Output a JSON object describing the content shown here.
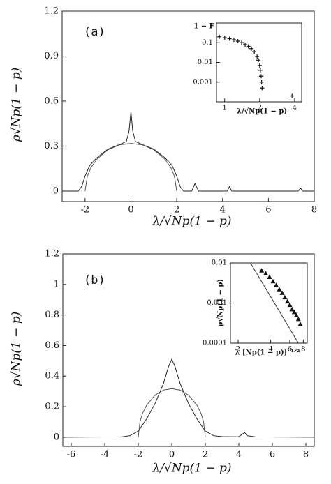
{
  "chart_data": [
    {
      "type": "line",
      "annotation": "(a)",
      "xlabel": "λ/√Np(1 − p)",
      "ylabel": "ρ√Np(1 − p)",
      "xlim": [
        -3,
        8
      ],
      "ylim": [
        -0.07,
        1.2
      ],
      "xticks": [
        -2,
        0,
        2,
        4,
        6,
        8
      ],
      "yticks": [
        0,
        0.3,
        0.6,
        0.9,
        1.2
      ],
      "series": [
        {
          "color": "#222",
          "x": [
            -3,
            -2.3,
            -2.15,
            -2,
            -1.8,
            -1.5,
            -1,
            -0.5,
            -0.2,
            -0.08,
            0,
            0.08,
            0.2,
            0.5,
            1,
            1.5,
            1.8,
            2,
            2.15,
            2.3,
            2.65,
            2.8,
            2.95,
            4.2,
            4.3,
            4.4,
            7.3,
            7.4,
            7.5,
            8
          ],
          "values": [
            0,
            0,
            0.03,
            0.1,
            0.17,
            0.22,
            0.28,
            0.31,
            0.33,
            0.4,
            0.53,
            0.4,
            0.33,
            0.31,
            0.28,
            0.22,
            0.17,
            0.1,
            0.03,
            0,
            0,
            0.05,
            0,
            0,
            0.03,
            0,
            0,
            0.02,
            0,
            0
          ]
        },
        {
          "color": "#555",
          "x": [
            -2,
            -1.9,
            -1.75,
            -1.5,
            -1,
            -0.5,
            0,
            0.5,
            1,
            1.5,
            1.75,
            1.9,
            2
          ],
          "values": [
            0,
            0.099,
            0.154,
            0.21,
            0.275,
            0.308,
            0.318,
            0.308,
            0.275,
            0.21,
            0.154,
            0.099,
            0
          ]
        }
      ]
    },
    {
      "type": "scatter",
      "xlabel": "λ/√Np(1 − p)",
      "ylabel": "1 − F",
      "xscale": "log",
      "yscale": "log",
      "xlim": [
        0.85,
        4.6
      ],
      "ylim": [
        0.0001,
        1
      ],
      "xticks": [
        1,
        2,
        4
      ],
      "yticks": [
        0.1,
        0.01,
        0.001
      ],
      "series": [
        {
          "color": "#111",
          "marker": "+",
          "x": [
            0.9,
            1,
            1.1,
            1.2,
            1.3,
            1.4,
            1.5,
            1.6,
            1.7,
            1.8,
            1.9,
            1.95,
            2,
            2.03,
            2.06,
            2.08,
            2.1,
            3.8
          ],
          "values": [
            0.2,
            0.18,
            0.16,
            0.14,
            0.12,
            0.1,
            0.08,
            0.065,
            0.05,
            0.035,
            0.02,
            0.013,
            0.007,
            0.004,
            0.002,
            0.001,
            0.0005,
            0.0002
          ]
        }
      ]
    },
    {
      "type": "line",
      "annotation": "(b)",
      "xlabel": "λ/√Np(1 − p)",
      "ylabel": "ρ√Np(1 − p)",
      "xlim": [
        -6.5,
        8.5
      ],
      "ylim": [
        -0.06,
        1.2
      ],
      "xticks": [
        -6,
        -4,
        -2,
        0,
        2,
        4,
        6,
        8
      ],
      "yticks": [
        0,
        0.2,
        0.4,
        0.6,
        0.8,
        1,
        1.2
      ],
      "series": [
        {
          "color": "#222",
          "x": [
            -6.5,
            -3,
            -2.5,
            -2,
            -1.5,
            -1,
            -0.5,
            -0.2,
            0,
            0.2,
            0.5,
            1,
            1.5,
            2,
            2.5,
            3,
            4,
            4.2,
            4.35,
            4.5,
            5,
            8.5
          ],
          "values": [
            0,
            0.002,
            0.01,
            0.04,
            0.12,
            0.22,
            0.35,
            0.46,
            0.51,
            0.46,
            0.35,
            0.22,
            0.12,
            0.04,
            0.01,
            0.004,
            0.003,
            0.02,
            0.03,
            0.01,
            0.002,
            0
          ]
        },
        {
          "color": "#555",
          "x": [
            -2,
            -1.9,
            -1.75,
            -1.5,
            -1,
            -0.5,
            0,
            0.5,
            1,
            1.5,
            1.75,
            1.9,
            2
          ],
          "values": [
            0,
            0.099,
            0.154,
            0.21,
            0.275,
            0.308,
            0.318,
            0.308,
            0.275,
            0.21,
            0.154,
            0.099,
            0
          ]
        }
      ]
    },
    {
      "type": "scatter",
      "xlabel": "λ [Np(1 − p)]⁻¹ᐟ²",
      "ylabel": "ρ√Np(1 − p)",
      "xscale": "log",
      "yscale": "log",
      "xlim": [
        1.7,
        8.7
      ],
      "ylim": [
        0.0001,
        0.01
      ],
      "xticks": [
        2,
        4,
        6,
        8
      ],
      "yticks": [
        0.01,
        0.001,
        0.0001
      ],
      "series": [
        {
          "color": "#111",
          "marker": "triangle",
          "x": [
            3.3,
            3.6,
            3.9,
            4.2,
            4.5,
            4.8,
            5.1,
            5.4,
            5.7,
            6,
            6.3,
            6.6,
            6.9,
            7.2,
            7.5
          ],
          "values": [
            0.0065,
            0.0055,
            0.0045,
            0.0035,
            0.0028,
            0.0022,
            0.0018,
            0.0014,
            0.0011,
            0.0009,
            0.0007,
            0.0006,
            0.0005,
            0.0004,
            0.0003
          ]
        },
        {
          "color": "#333",
          "x": [
            2.6,
            7.2
          ],
          "values": [
            0.01,
            0.0001
          ]
        }
      ]
    }
  ]
}
